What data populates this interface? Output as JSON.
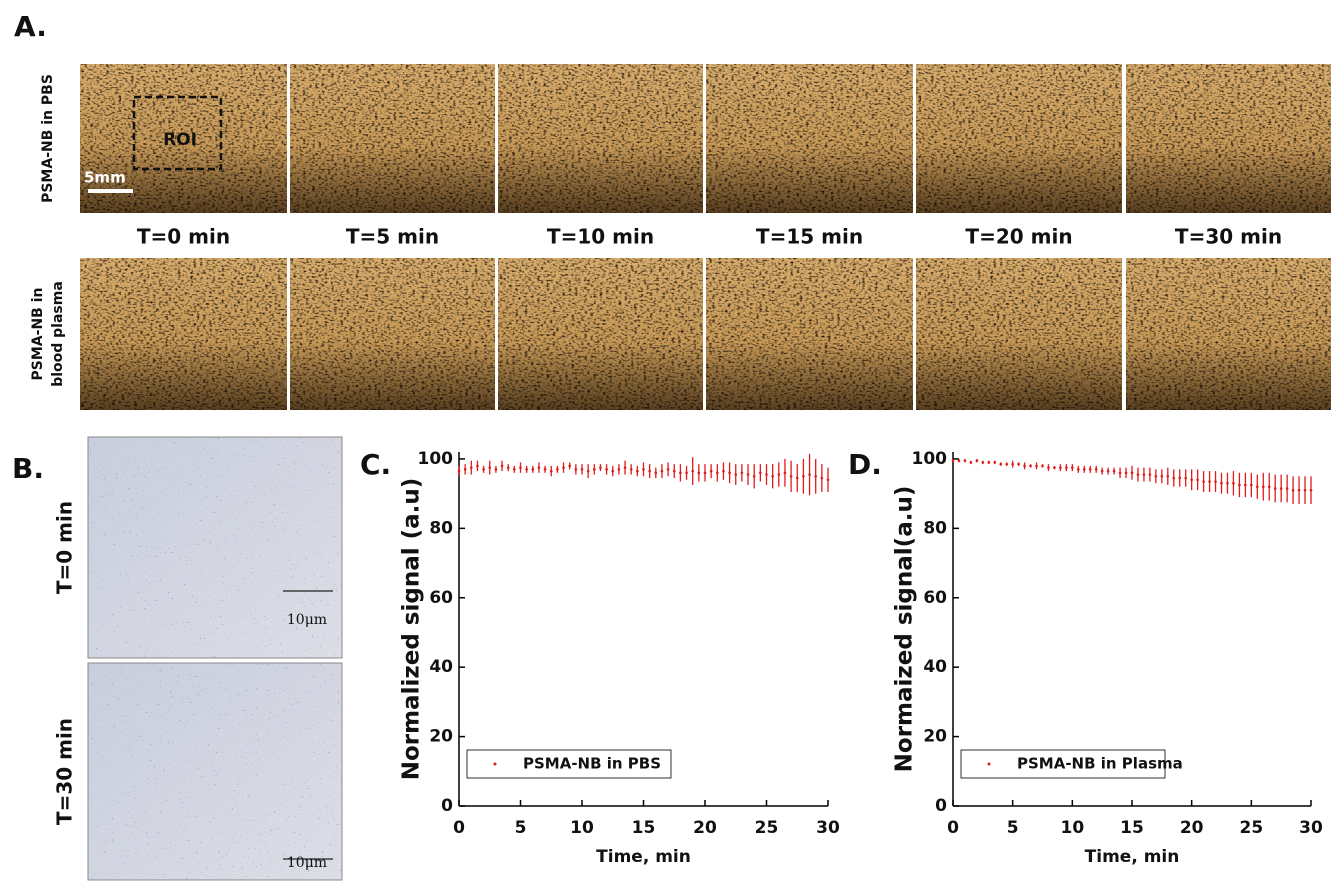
{
  "panel_a": {
    "label": "A.",
    "rows": [
      [
        "PSMA-NB in PBS"
      ],
      [
        "PSMA-NB in",
        "blood plasma"
      ]
    ],
    "times": [
      "T=0 min",
      "T=5 min",
      "T=10 min",
      "T=15 min",
      "T=20 min",
      "T=30 min"
    ],
    "roi": "ROI",
    "scale_bar": "5mm"
  },
  "panel_b": {
    "label": "B.",
    "rows": [
      "T=0 min",
      "T=30 min"
    ],
    "scale_bars": [
      "10μm",
      "10μm"
    ]
  },
  "chart_data": [
    {
      "type": "errorbar",
      "panel_label": "C.",
      "x_label": "Time, min",
      "y_label": "Normalized signal (a.u)",
      "xlim": [
        0,
        30
      ],
      "ylim": [
        0,
        102
      ],
      "xticks": [
        0,
        5,
        10,
        15,
        20,
        25,
        30
      ],
      "yticks": [
        0,
        20,
        40,
        60,
        80,
        100
      ],
      "legend": "lower left",
      "x": [
        0,
        0.5,
        1,
        1.5,
        2,
        2.5,
        3,
        3.5,
        4,
        4.5,
        5,
        5.5,
        6,
        6.5,
        7,
        7.5,
        8,
        8.5,
        9,
        9.5,
        10,
        10.5,
        11,
        11.5,
        12,
        12.5,
        13,
        13.5,
        14,
        14.5,
        15,
        15.5,
        16,
        16.5,
        17,
        17.5,
        18,
        18.5,
        19,
        19.5,
        20,
        20.5,
        21,
        21.5,
        22,
        22.5,
        23,
        23.5,
        24,
        24.5,
        25,
        25.5,
        26,
        26.5,
        27,
        27.5,
        28,
        28.5,
        29,
        29.5,
        30
      ],
      "series": [
        {
          "name": "PSMA-NB in PBS",
          "color": "#e01b1b",
          "values": [
            96.5,
            97,
            97.5,
            98,
            97,
            97.5,
            97,
            98,
            97.5,
            97,
            97.5,
            97,
            97,
            97.5,
            97,
            96.5,
            97,
            97.5,
            98,
            97,
            97,
            96.5,
            97,
            97.5,
            97,
            96.5,
            97,
            97.5,
            97,
            96.5,
            97,
            96.5,
            96,
            96.5,
            97,
            96.5,
            96,
            96,
            96.5,
            96,
            96,
            96.5,
            96,
            96.5,
            96,
            95.5,
            96,
            95.5,
            95,
            96,
            95.5,
            95,
            95.5,
            96,
            95,
            94.5,
            95,
            95.5,
            95,
            94.5,
            94
          ],
          "errors": [
            1.5,
            1.5,
            2,
            1.5,
            1,
            2,
            1,
            1.5,
            1,
            1,
            1.5,
            1,
            1,
            1.5,
            1,
            1.5,
            1,
            1.5,
            1,
            1.5,
            1.5,
            2,
            1.5,
            1,
            1.5,
            1.5,
            1.5,
            2,
            1.5,
            1.5,
            2,
            2,
            1.5,
            2,
            2,
            2,
            2.5,
            2,
            4,
            2.5,
            2.5,
            2,
            2.5,
            2.5,
            3,
            3,
            2.5,
            3,
            3.5,
            2.5,
            3,
            3.5,
            3.5,
            4,
            4.5,
            4,
            5,
            6,
            5,
            4,
            3.5
          ]
        }
      ]
    },
    {
      "type": "errorbar",
      "panel_label": "D.",
      "x_label": "Time, min",
      "y_label": "Normaized signal(a.u)",
      "xlim": [
        0,
        30
      ],
      "ylim": [
        0,
        102
      ],
      "xticks": [
        0,
        5,
        10,
        15,
        20,
        25,
        30
      ],
      "yticks": [
        0,
        20,
        40,
        60,
        80,
        100
      ],
      "legend": "lower left",
      "x": [
        0,
        0.5,
        1,
        1.5,
        2,
        2.5,
        3,
        3.5,
        4,
        4.5,
        5,
        5.5,
        6,
        6.5,
        7,
        7.5,
        8,
        8.5,
        9,
        9.5,
        10,
        10.5,
        11,
        11.5,
        12,
        12.5,
        13,
        13.5,
        14,
        14.5,
        15,
        15.5,
        16,
        16.5,
        17,
        17.5,
        18,
        18.5,
        19,
        19.5,
        20,
        20.5,
        21,
        21.5,
        22,
        22.5,
        23,
        23.5,
        24,
        24.5,
        25,
        25.5,
        26,
        26.5,
        27,
        27.5,
        28,
        28.5,
        29,
        29.5,
        30
      ],
      "series": [
        {
          "name": "PSMA-NB in Plasma",
          "color": "#e01b1b",
          "values": [
            99.5,
            99.5,
            99.5,
            99,
            99.5,
            99,
            99,
            99,
            98.5,
            98.5,
            98.5,
            98.5,
            98,
            98,
            98,
            98,
            97.5,
            97.5,
            97.5,
            97.5,
            97.5,
            97,
            97,
            97,
            97,
            96.5,
            96.5,
            96.5,
            96,
            96,
            96,
            95.5,
            95.5,
            95.5,
            95,
            95,
            95,
            94.5,
            94.5,
            94.5,
            94,
            94,
            93.5,
            93.5,
            93.5,
            93,
            93,
            93,
            92.5,
            92.5,
            92.5,
            92,
            92,
            92,
            91.5,
            91.5,
            91.5,
            91,
            91,
            91,
            91
          ],
          "errors": [
            0.5,
            0.5,
            0.5,
            0.5,
            0.5,
            0.5,
            0.5,
            0.5,
            0.5,
            0.5,
            1,
            0.5,
            1,
            0.5,
            1,
            0.5,
            1,
            0.5,
            1,
            1,
            1,
            1,
            1,
            1,
            1,
            1,
            1,
            1,
            1.5,
            1.5,
            2,
            2,
            2,
            2,
            2,
            2,
            2.5,
            2.5,
            2.5,
            2.5,
            3,
            3,
            3,
            3,
            3,
            3,
            3,
            3.5,
            3.5,
            3.5,
            3.5,
            3.5,
            4,
            4,
            4,
            4,
            4,
            4,
            4,
            4,
            4
          ]
        }
      ]
    }
  ]
}
